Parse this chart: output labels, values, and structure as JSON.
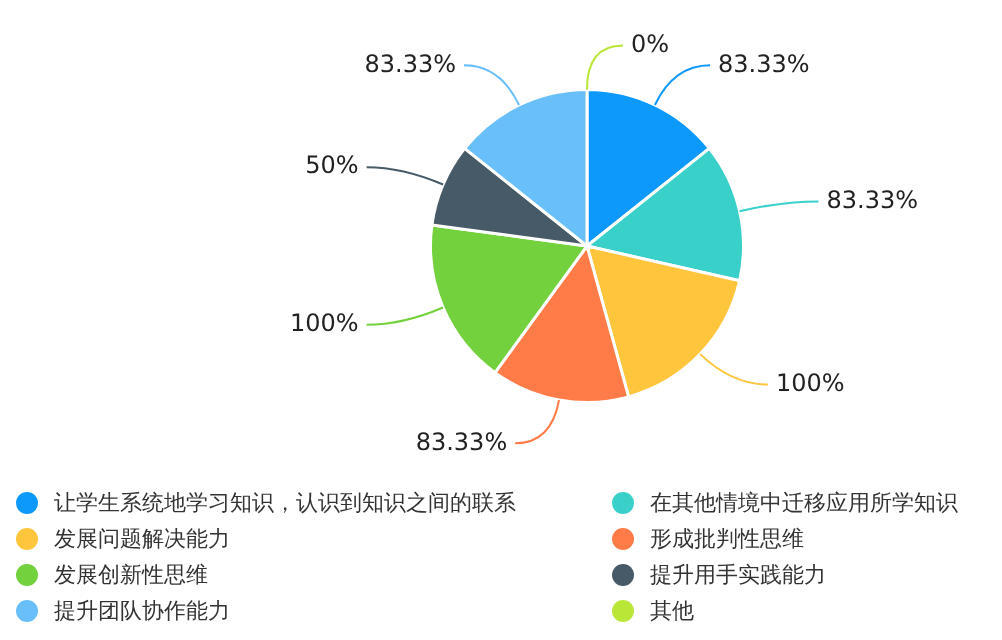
{
  "chart_data": {
    "type": "pie",
    "categories": [
      "让学生系统地学习知识，认识到知识之间的联系",
      "在其他情境中迁移应用所学知识",
      "发展问题解决能力",
      "形成批判性思维",
      "发展创新性思维",
      "提升用手实践能力",
      "提升团队协作能力",
      "其他"
    ],
    "values": [
      83.33,
      83.33,
      100,
      83.33,
      100,
      50,
      83.33,
      0
    ],
    "value_labels": [
      "83.33%",
      "83.33%",
      "100%",
      "83.33%",
      "100%",
      "50%",
      "83.33%",
      "0%"
    ],
    "colors": [
      "#0d98fb",
      "#38d0c9",
      "#ffc53d",
      "#ff7b47",
      "#73d13d",
      "#475a67",
      "#69bff9",
      "#bae637"
    ],
    "legend": "bottom"
  }
}
